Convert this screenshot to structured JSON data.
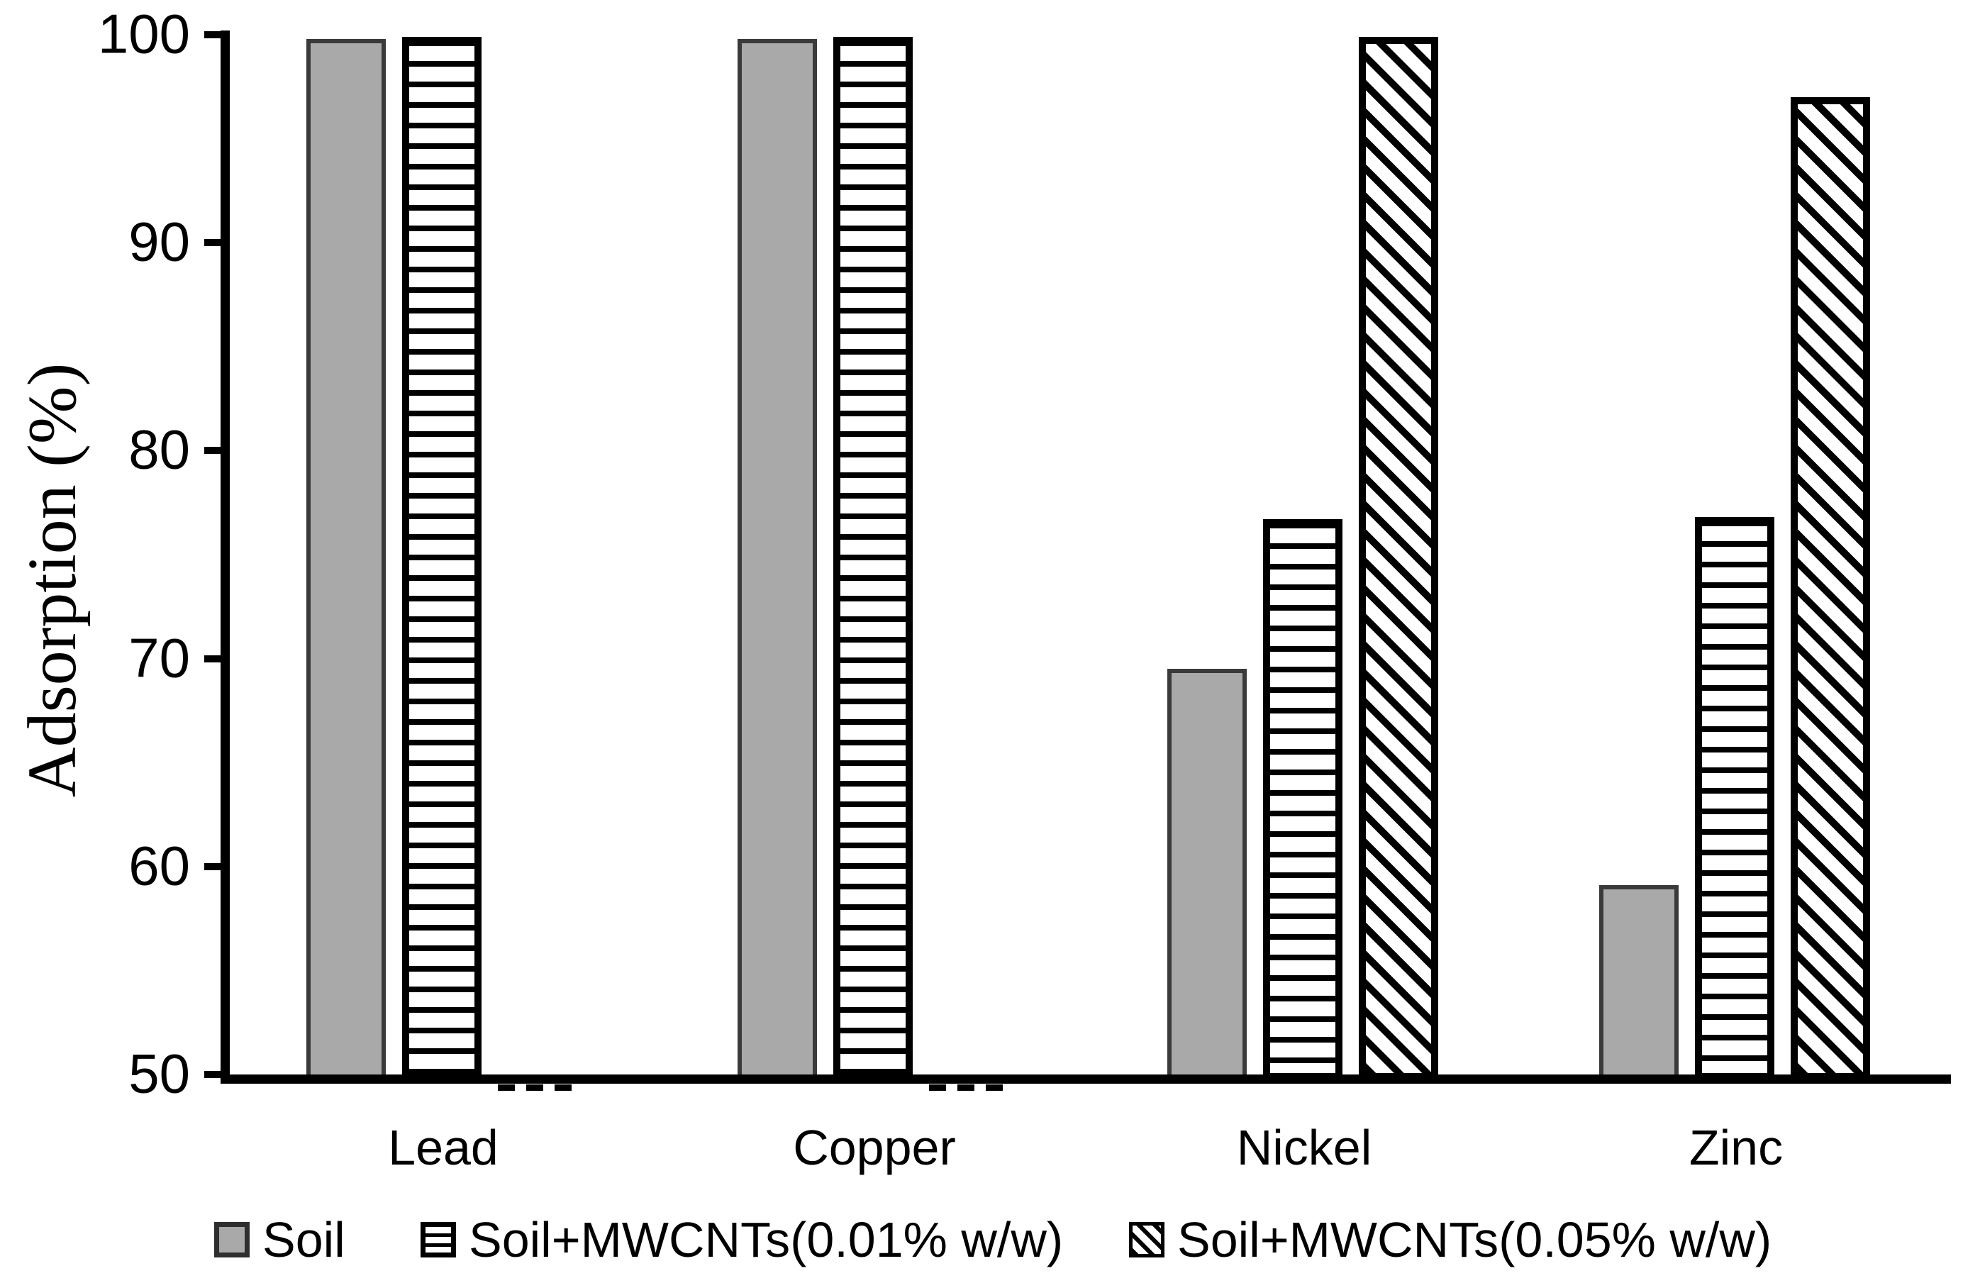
{
  "chart_data": {
    "type": "bar",
    "title": "",
    "xlabel": "",
    "ylabel": "Adsorption (%)",
    "ylim": [
      50,
      100
    ],
    "yticks": [
      100,
      90,
      80,
      70,
      60,
      50
    ],
    "grid": false,
    "legend_position": "bottom",
    "categories": [
      "Lead",
      "Copper",
      "Nickel",
      "Zinc"
    ],
    "series": [
      {
        "name": "Soil",
        "pattern": "solid-gray",
        "color": "#a9a9a9",
        "values": [
          99.8,
          99.8,
          69.5,
          59.1
        ]
      },
      {
        "name": "Soil+MWCNTs(0.01% w/w)",
        "pattern": "horizontal-stripes",
        "color": "#000000",
        "values": [
          99.9,
          99.9,
          76.7,
          76.8
        ]
      },
      {
        "name": "Soil+MWCNTs(0.05% w/w)",
        "pattern": "diagonal-hatch",
        "color": "#000000",
        "values": [
          50.1,
          50.1,
          99.9,
          97.0
        ]
      }
    ]
  }
}
